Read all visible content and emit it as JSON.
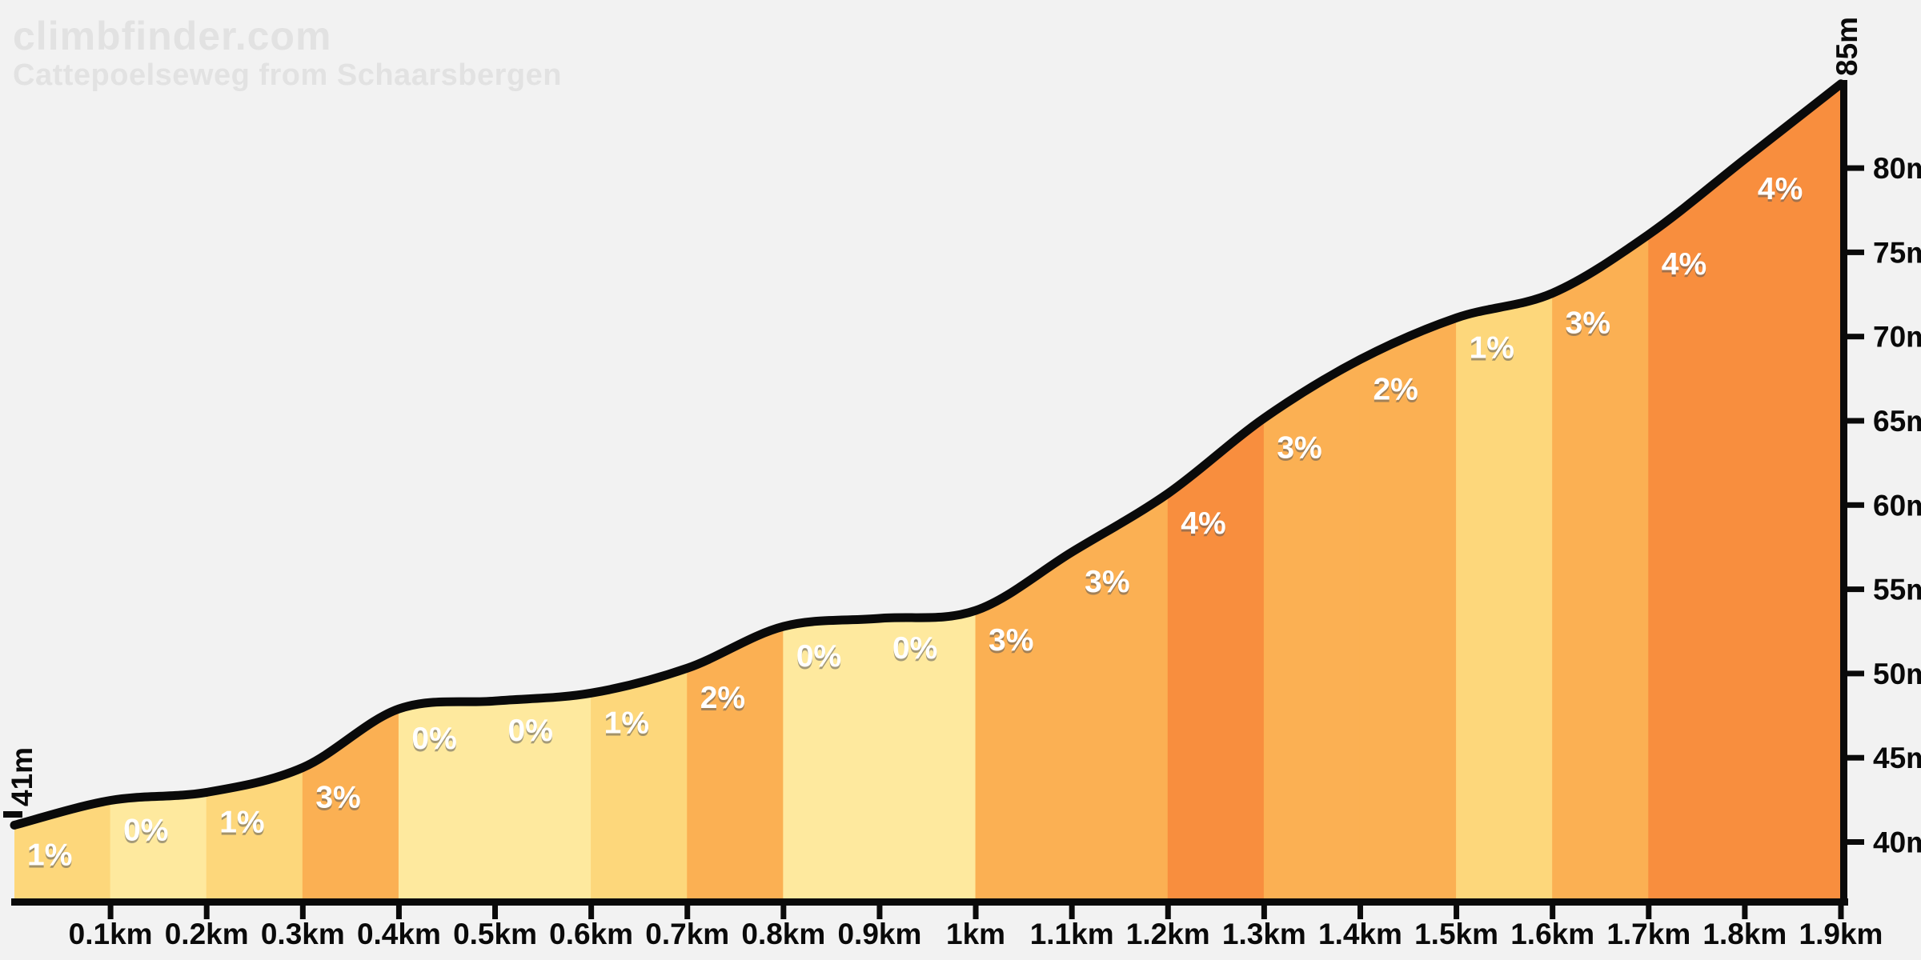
{
  "watermark": {
    "site": "climbfinder.com",
    "climb": "Cattepoelseweg from Schaarsbergen"
  },
  "chart_data": {
    "type": "area",
    "title": "climbfinder.com",
    "subtitle": "Cattepoelseweg from Schaarsbergen",
    "x_km": [
      0.0,
      0.1,
      0.2,
      0.3,
      0.4,
      0.5,
      0.6,
      0.7,
      0.8,
      0.9,
      1.0,
      1.1,
      1.2,
      1.3,
      1.4,
      1.5,
      1.6,
      1.7,
      1.8,
      1.9
    ],
    "elevation_m": [
      41.0,
      42.47,
      42.95,
      44.42,
      47.9,
      48.37,
      48.84,
      50.32,
      52.79,
      53.27,
      53.74,
      57.21,
      60.69,
      65.16,
      68.64,
      71.11,
      72.58,
      76.06,
      80.53,
      85.0
    ],
    "segment_grades_pct": [
      1,
      0,
      1,
      3,
      0,
      0,
      1,
      2,
      0,
      0,
      3,
      3,
      4,
      3,
      2,
      1,
      3,
      4,
      4
    ],
    "segment_grade_labels": [
      "1%",
      "0%",
      "1%",
      "3%",
      "0%",
      "0%",
      "1%",
      "2%",
      "0%",
      "0%",
      "3%",
      "3%",
      "4%",
      "3%",
      "2%",
      "1%",
      "3%",
      "4%",
      "4%"
    ],
    "x_tick_km": [
      0.1,
      0.2,
      0.3,
      0.4,
      0.5,
      0.6,
      0.7,
      0.8,
      0.9,
      1.0,
      1.1,
      1.2,
      1.3,
      1.4,
      1.5,
      1.6,
      1.7,
      1.8,
      1.9
    ],
    "x_tick_labels": [
      "0.1km",
      "0.2km",
      "0.3km",
      "0.4km",
      "0.5km",
      "0.6km",
      "0.7km",
      "0.8km",
      "0.9km",
      "1km",
      "1.1km",
      "1.2km",
      "1.3km",
      "1.4km",
      "1.5km",
      "1.6km",
      "1.7km",
      "1.8km",
      "1.9km"
    ],
    "y_tick_m": [
      40,
      45,
      50,
      55,
      60,
      65,
      70,
      75,
      80
    ],
    "y_tick_labels": [
      "40m",
      "45m",
      "50m",
      "55m",
      "60m",
      "65m",
      "70m",
      "75m",
      "80m"
    ],
    "start_elevation_label": "41m",
    "end_elevation_label": "85m",
    "xlim_km": [
      0,
      1.9
    ],
    "ylim_m": [
      36.4,
      85
    ],
    "grid": false,
    "legend": false,
    "colors": {
      "background": "#F2F2F2",
      "watermark": "#E2E2E2",
      "axis": "#0A0A0A",
      "curve": "#0A0A0A",
      "grade_label_text": "#FFFFFF",
      "grade_label_shadow": "rgba(90,90,90,0.55)",
      "grade_fill_by_pct": {
        "0": "#FEE99E",
        "1": "#FDD77B",
        "2": "#FBB053",
        "3": "#FBB053",
        "4": "#F88E3E"
      }
    }
  }
}
